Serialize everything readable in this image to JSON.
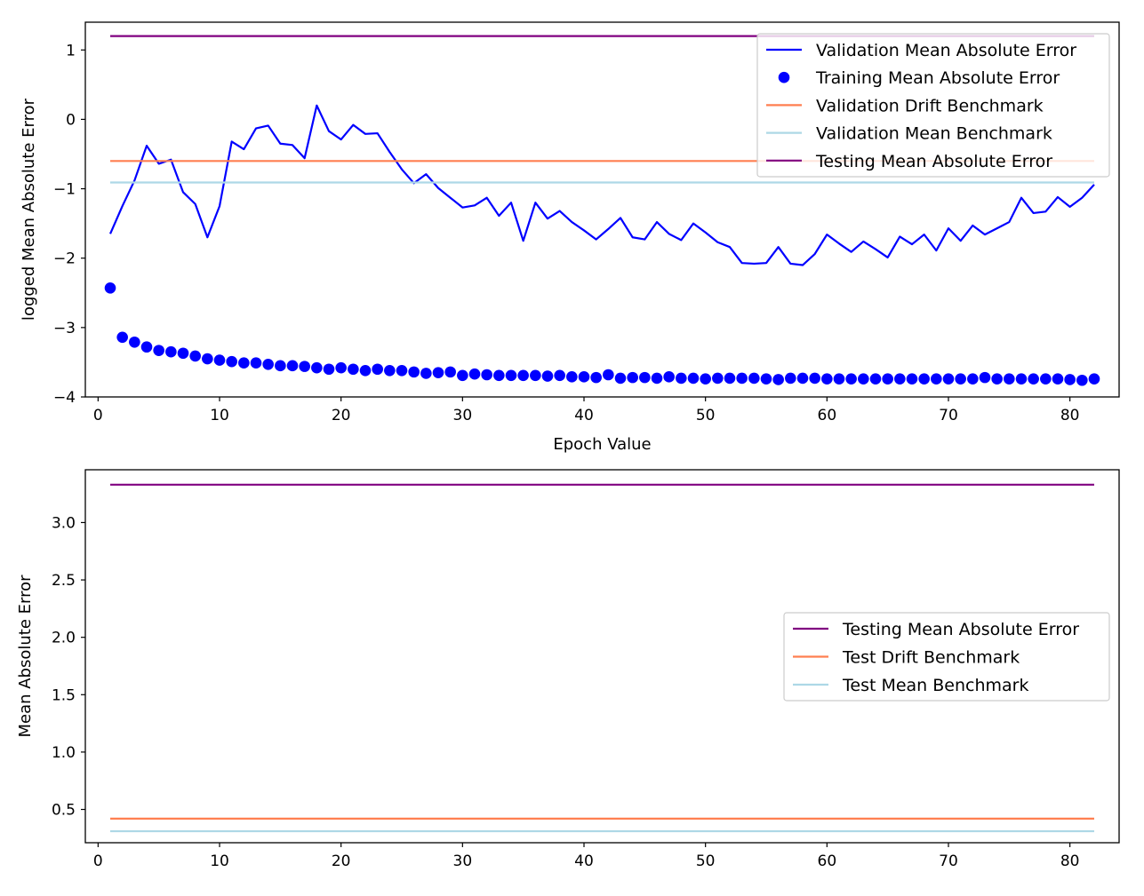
{
  "chart_data": [
    {
      "type": "line",
      "title": "",
      "xlabel": "Epoch Value",
      "ylabel": "logged Mean Absolute Error",
      "xlim": [
        -1.05,
        84.05
      ],
      "ylim": [
        -4.0,
        1.4
      ],
      "xticks": [
        0,
        10,
        20,
        30,
        40,
        50,
        60,
        70,
        80
      ],
      "xtick_labels": [
        "0",
        "10",
        "20",
        "30",
        "40",
        "50",
        "60",
        "70",
        "80"
      ],
      "yticks": [
        1,
        0,
        -1,
        -2,
        -3,
        -4
      ],
      "ytick_labels": [
        "1",
        "0",
        "−1",
        "−2",
        "−3",
        "−4"
      ],
      "grid": false,
      "legend_position": "upper right",
      "legend_entries": [
        {
          "label": "Validation Mean Absolute Error",
          "kind": "line",
          "color": "#0000ff"
        },
        {
          "label": "Training Mean Absolute Error",
          "kind": "marker",
          "color": "#0000ff"
        },
        {
          "label": "Validation Drift Benchmark",
          "kind": "line",
          "color": "#ff7f50"
        },
        {
          "label": "Validation Mean Benchmark",
          "kind": "line",
          "color": "#add8e6"
        },
        {
          "label": "Testing Mean Absolute Error",
          "kind": "line",
          "color": "#800080"
        }
      ],
      "series": [
        {
          "name": "Validation Mean Absolute Error",
          "kind": "line",
          "color": "#0000ff",
          "x": [
            1,
            2,
            3,
            4,
            5,
            6,
            7,
            8,
            9,
            10,
            11,
            12,
            13,
            14,
            15,
            16,
            17,
            18,
            19,
            20,
            21,
            22,
            23,
            24,
            25,
            26,
            27,
            28,
            29,
            30,
            31,
            32,
            33,
            34,
            35,
            36,
            37,
            38,
            39,
            40,
            41,
            42,
            43,
            44,
            45,
            46,
            47,
            48,
            49,
            50,
            51,
            52,
            53,
            54,
            55,
            56,
            57,
            58,
            59,
            60,
            61,
            62,
            63,
            64,
            65,
            66,
            67,
            68,
            69,
            70,
            71,
            72,
            73,
            74,
            75,
            76,
            77,
            78,
            79,
            80,
            81,
            82
          ],
          "y": [
            -1.65,
            -1.25,
            -0.88,
            -0.38,
            -0.64,
            -0.58,
            -1.05,
            -1.22,
            -1.7,
            -1.25,
            -0.32,
            -0.43,
            -0.13,
            -0.09,
            -0.35,
            -0.37,
            -0.56,
            0.2,
            -0.17,
            -0.29,
            -0.08,
            -0.21,
            -0.2,
            -0.47,
            -0.72,
            -0.92,
            -0.79,
            -0.99,
            -1.13,
            -1.27,
            -1.24,
            -1.13,
            -1.39,
            -1.2,
            -1.75,
            -1.2,
            -1.43,
            -1.32,
            -1.48,
            -1.6,
            -1.73,
            -1.58,
            -1.42,
            -1.7,
            -1.73,
            -1.48,
            -1.65,
            -1.74,
            -1.5,
            -1.63,
            -1.77,
            -1.84,
            -2.07,
            -2.08,
            -2.07,
            -1.84,
            -2.08,
            -2.1,
            -1.94,
            -1.66,
            -1.79,
            -1.91,
            -1.76,
            -1.87,
            -1.99,
            -1.69,
            -1.8,
            -1.66,
            -1.89,
            -1.57,
            -1.75,
            -1.53,
            -1.66,
            -1.57,
            -1.48,
            -1.13,
            -1.35,
            -1.33,
            -1.12,
            -1.26,
            -1.13,
            -0.94
          ]
        },
        {
          "name": "Training Mean Absolute Error",
          "kind": "marker",
          "color": "#0000ff",
          "x": [
            1,
            2,
            3,
            4,
            5,
            6,
            7,
            8,
            9,
            10,
            11,
            12,
            13,
            14,
            15,
            16,
            17,
            18,
            19,
            20,
            21,
            22,
            23,
            24,
            25,
            26,
            27,
            28,
            29,
            30,
            31,
            32,
            33,
            34,
            35,
            36,
            37,
            38,
            39,
            40,
            41,
            42,
            43,
            44,
            45,
            46,
            47,
            48,
            49,
            50,
            51,
            52,
            53,
            54,
            55,
            56,
            57,
            58,
            59,
            60,
            61,
            62,
            63,
            64,
            65,
            66,
            67,
            68,
            69,
            70,
            71,
            72,
            73,
            74,
            75,
            76,
            77,
            78,
            79,
            80,
            81,
            82
          ],
          "y": [
            -2.43,
            -3.14,
            -3.21,
            -3.28,
            -3.33,
            -3.35,
            -3.37,
            -3.41,
            -3.45,
            -3.47,
            -3.49,
            -3.51,
            -3.51,
            -3.53,
            -3.55,
            -3.55,
            -3.56,
            -3.58,
            -3.6,
            -3.58,
            -3.6,
            -3.62,
            -3.6,
            -3.62,
            -3.62,
            -3.64,
            -3.66,
            -3.65,
            -3.64,
            -3.69,
            -3.67,
            -3.68,
            -3.69,
            -3.69,
            -3.69,
            -3.69,
            -3.7,
            -3.69,
            -3.71,
            -3.71,
            -3.72,
            -3.68,
            -3.73,
            -3.72,
            -3.72,
            -3.73,
            -3.71,
            -3.73,
            -3.73,
            -3.74,
            -3.73,
            -3.73,
            -3.73,
            -3.73,
            -3.74,
            -3.75,
            -3.73,
            -3.73,
            -3.73,
            -3.74,
            -3.74,
            -3.74,
            -3.74,
            -3.74,
            -3.74,
            -3.74,
            -3.74,
            -3.74,
            -3.74,
            -3.74,
            -3.74,
            -3.74,
            -3.72,
            -3.74,
            -3.74,
            -3.74,
            -3.74,
            -3.74,
            -3.74,
            -3.75,
            -3.76,
            -3.74
          ]
        },
        {
          "name": "Validation Drift Benchmark",
          "kind": "hline",
          "color": "#ff7f50",
          "x": [
            1,
            82
          ],
          "y": [
            -0.6,
            -0.6
          ]
        },
        {
          "name": "Validation Mean Benchmark",
          "kind": "hline",
          "color": "#add8e6",
          "x": [
            1,
            82
          ],
          "y": [
            -0.91,
            -0.91
          ]
        },
        {
          "name": "Testing Mean Absolute Error",
          "kind": "hline",
          "color": "#800080",
          "x": [
            1,
            82
          ],
          "y": [
            1.2,
            1.2
          ]
        }
      ]
    },
    {
      "type": "line",
      "title": "",
      "xlabel": "",
      "ylabel": "Mean Absolute Error",
      "xlim": [
        -1.05,
        84.05
      ],
      "ylim": [
        0.21,
        3.46
      ],
      "xticks": [
        0,
        10,
        20,
        30,
        40,
        50,
        60,
        70,
        80
      ],
      "xtick_labels": [
        "0",
        "10",
        "20",
        "30",
        "40",
        "50",
        "60",
        "70",
        "80"
      ],
      "yticks": [
        0.5,
        1.0,
        1.5,
        2.0,
        2.5,
        3.0
      ],
      "ytick_labels": [
        "0.5",
        "1.0",
        "1.5",
        "2.0",
        "2.5",
        "3.0"
      ],
      "grid": false,
      "legend_position": "center right",
      "legend_entries": [
        {
          "label": "Testing Mean Absolute Error",
          "kind": "line",
          "color": "#800080"
        },
        {
          "label": "Test Drift Benchmark",
          "kind": "line",
          "color": "#ff7f50"
        },
        {
          "label": "Test Mean Benchmark",
          "kind": "line",
          "color": "#add8e6"
        }
      ],
      "series": [
        {
          "name": "Testing Mean Absolute Error",
          "kind": "hline",
          "color": "#800080",
          "x": [
            1,
            82
          ],
          "y": [
            3.33,
            3.33
          ]
        },
        {
          "name": "Test Drift Benchmark",
          "kind": "hline",
          "color": "#ff7f50",
          "x": [
            1,
            82
          ],
          "y": [
            0.42,
            0.42
          ]
        },
        {
          "name": "Test Mean Benchmark",
          "kind": "hline",
          "color": "#add8e6",
          "x": [
            1,
            82
          ],
          "y": [
            0.31,
            0.31
          ]
        }
      ]
    }
  ]
}
